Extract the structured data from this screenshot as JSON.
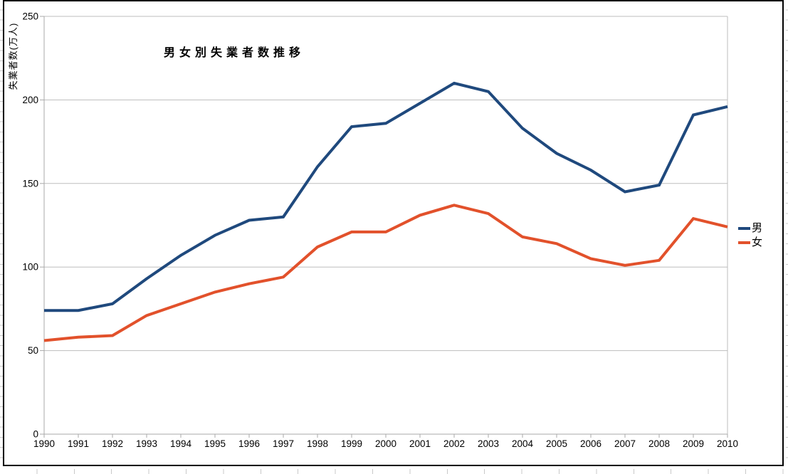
{
  "chart_data": {
    "type": "line",
    "title": "男女別失業者数推移",
    "ylabel": "失業者数(万人)",
    "xlabel": "",
    "x": [
      1990,
      1991,
      1992,
      1993,
      1994,
      1995,
      1996,
      1997,
      1998,
      1999,
      2000,
      2001,
      2002,
      2003,
      2004,
      2005,
      2006,
      2007,
      2008,
      2009,
      2010
    ],
    "y_ticks": [
      0,
      50,
      100,
      150,
      200,
      250
    ],
    "ylim": [
      0,
      250
    ],
    "grid": true,
    "legend_position": "right",
    "series": [
      {
        "name": "男",
        "color": "#1F497D",
        "values": [
          74,
          74,
          78,
          93,
          107,
          119,
          128,
          130,
          160,
          184,
          186,
          198,
          210,
          205,
          183,
          168,
          158,
          145,
          149,
          191,
          196
        ]
      },
      {
        "name": "女",
        "color": "#E2512B",
        "values": [
          56,
          58,
          59,
          71,
          78,
          85,
          90,
          94,
          112,
          121,
          121,
          131,
          137,
          132,
          118,
          114,
          105,
          101,
          104,
          129,
          124
        ]
      }
    ]
  },
  "legend": {
    "items": [
      {
        "label": "男"
      },
      {
        "label": "女"
      }
    ]
  },
  "colors": {
    "gridline": "#BDBDBD",
    "axis": "#A9A9A9",
    "tick_label": "#000000",
    "chart_border": "#000000",
    "background": "#FFFFFF"
  }
}
